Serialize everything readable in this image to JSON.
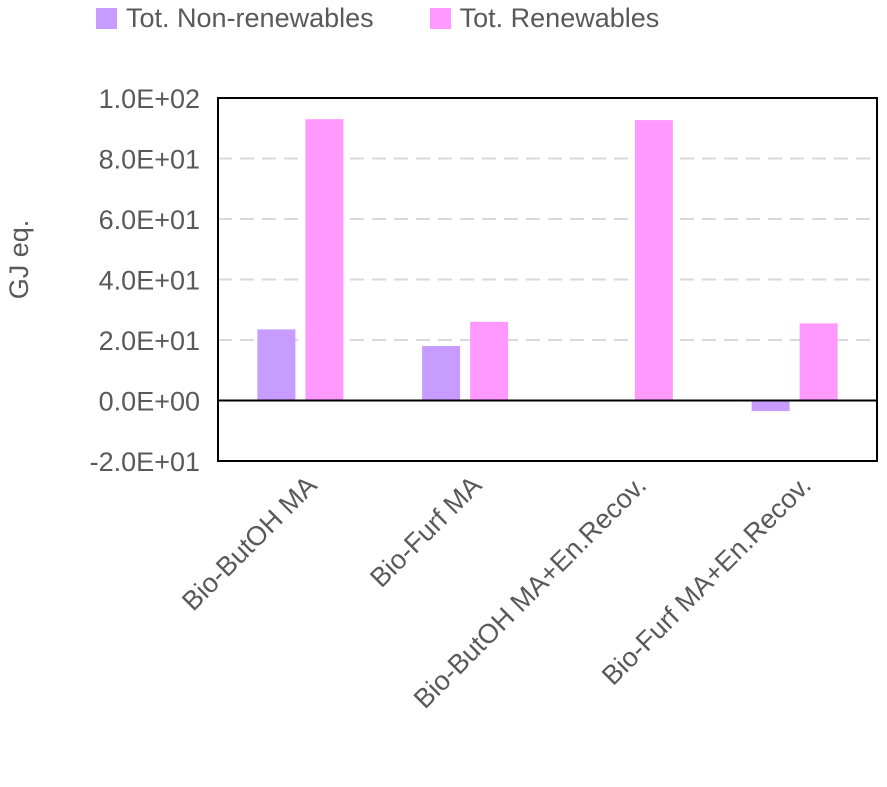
{
  "chart_data": {
    "type": "bar",
    "categories": [
      "Bio-ButOH MA",
      "Bio-Furf MA",
      "Bio-ButOH MA+En.Recov.",
      "Bio-Furf MA+En.Recov."
    ],
    "series": [
      {
        "name": "Tot. Non-renewables",
        "color": "#c89bff",
        "values": [
          23.5,
          18.0,
          -0.3,
          -3.5
        ]
      },
      {
        "name": "Tot. Renewables",
        "color": "#ff99ff",
        "values": [
          93.0,
          26.0,
          92.7,
          25.5
        ]
      }
    ],
    "ylabel": "GJ eq.",
    "ylim": [
      -20,
      100
    ],
    "yticks": [
      "-2.0E+01",
      "0.0E+00",
      "2.0E+01",
      "4.0E+01",
      "6.0E+01",
      "8.0E+01",
      "1.0E+02"
    ],
    "ytick_values": [
      -20,
      0,
      20,
      40,
      60,
      80,
      100
    ],
    "grid": true,
    "legend_position": "top"
  }
}
